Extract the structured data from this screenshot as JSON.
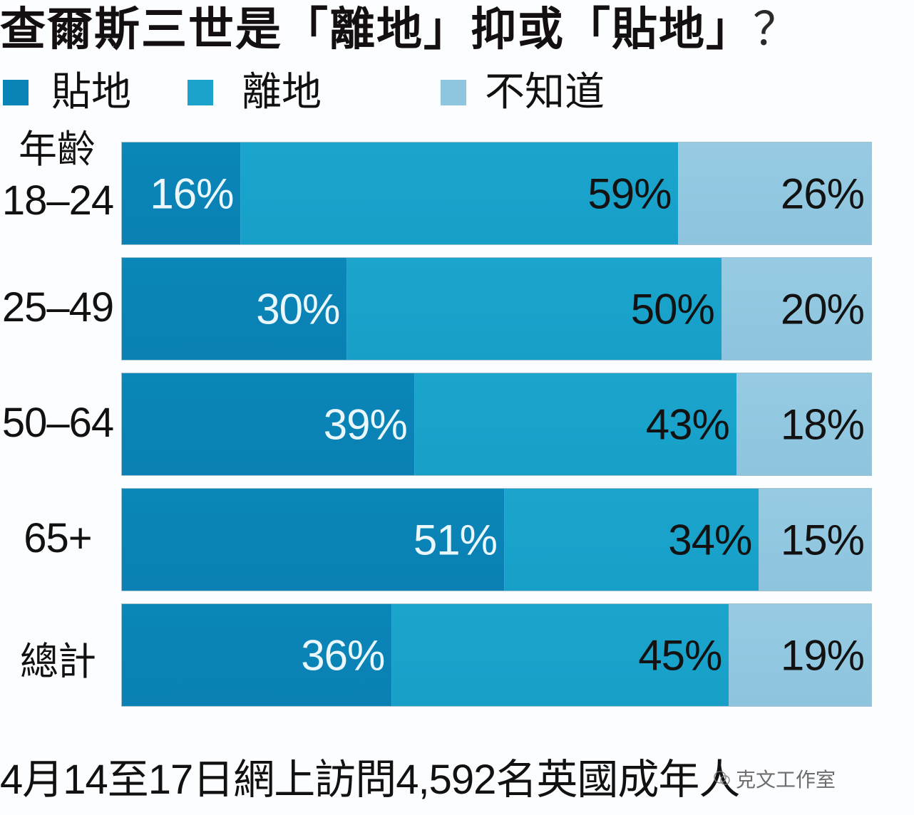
{
  "title": {
    "main": "查爾斯三世是「離地」抑或「貼地」",
    "question_mark": "？"
  },
  "legend": [
    {
      "label": "貼地",
      "color": "#0a84b6"
    },
    {
      "label": "離地",
      "color": "#1ca3cb"
    },
    {
      "label": "不知道",
      "color": "#8fc6df"
    }
  ],
  "axis": {
    "group_header": "年齡"
  },
  "rows": [
    {
      "label": "18–24",
      "values": [
        16,
        59,
        26
      ],
      "labels": [
        "16%",
        "59%",
        "26%"
      ]
    },
    {
      "label": "25–49",
      "values": [
        30,
        50,
        20
      ],
      "labels": [
        "30%",
        "50%",
        "20%"
      ]
    },
    {
      "label": "50–64",
      "values": [
        39,
        43,
        18
      ],
      "labels": [
        "39%",
        "43%",
        "18%"
      ]
    },
    {
      "label": "65+",
      "values": [
        51,
        34,
        15
      ],
      "labels": [
        "51%",
        "34%",
        "15%"
      ]
    },
    {
      "label": "總計",
      "values": [
        36,
        45,
        19
      ],
      "labels": [
        "36%",
        "45%",
        "19%"
      ]
    }
  ],
  "footer": {
    "note": "4月14至17日網上訪問4,592名英國成年人"
  },
  "watermark": {
    "text": "克文工作室"
  },
  "chart_data": {
    "type": "bar",
    "orientation": "horizontal",
    "stacked": true,
    "title": "查爾斯三世是「離地」抑或「貼地」？",
    "categories": [
      "18–24",
      "25–49",
      "50–64",
      "65+",
      "總計"
    ],
    "category_group_label": "年齡",
    "series": [
      {
        "name": "貼地",
        "values": [
          16,
          30,
          39,
          51,
          36
        ],
        "color": "#0a84b6"
      },
      {
        "name": "離地",
        "values": [
          59,
          50,
          43,
          34,
          45
        ],
        "color": "#1ca3cb"
      },
      {
        "name": "不知道",
        "values": [
          26,
          20,
          18,
          15,
          19
        ],
        "color": "#8fc6df"
      }
    ],
    "value_unit": "%",
    "xlabel": "",
    "ylabel": "年齡",
    "xlim": [
      0,
      100
    ],
    "grid": false,
    "legend_position": "top",
    "data_labels": true,
    "note": "4月14至17日網上訪問4,592名英國成年人"
  }
}
